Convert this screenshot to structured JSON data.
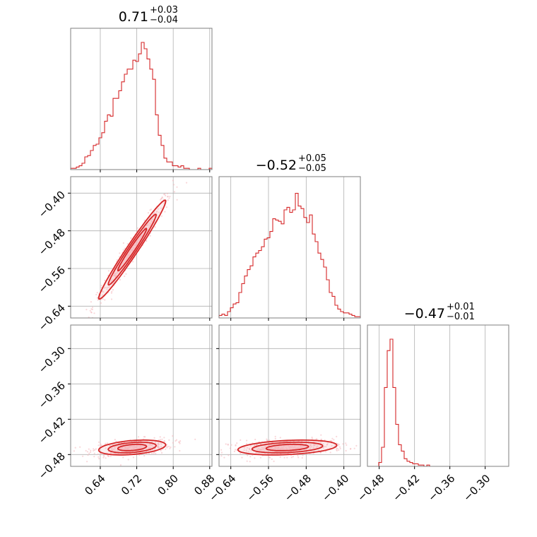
{
  "chart_data": {
    "type": "corner",
    "color": "#d62728",
    "fill_color": "#f4b6bb",
    "grid": true,
    "parameters": [
      {
        "title_value": "0.71",
        "title_plus": "+0.03",
        "title_minus": "−0.04",
        "range": [
          0.575,
          0.885
        ],
        "ticks": [
          0.64,
          0.72,
          0.8,
          0.88
        ],
        "tick_labels": [
          "0.64",
          "0.72",
          "0.80",
          "0.88"
        ],
        "median": 0.71,
        "sigma": 0.035
      },
      {
        "title_value": "−0.52",
        "title_plus": "+0.05",
        "title_minus": "−0.05",
        "range": [
          -0.665,
          -0.365
        ],
        "ticks": [
          -0.64,
          -0.56,
          -0.48,
          -0.4
        ],
        "tick_labels": [
          "−0.64",
          "−0.56",
          "−0.48",
          "−0.40"
        ],
        "median": -0.52,
        "sigma": 0.05
      },
      {
        "title_value": "−0.47",
        "title_plus": "+0.01",
        "title_minus": "−0.01",
        "range": [
          -0.5,
          -0.26
        ],
        "ticks": [
          -0.48,
          -0.42,
          -0.36,
          -0.3
        ],
        "tick_labels": [
          "−0.48",
          "−0.42",
          "−0.36",
          "−0.30"
        ],
        "median": -0.468,
        "sigma": 0.006
      }
    ],
    "histograms": [
      [
        0.01,
        0.01,
        0.02,
        0.03,
        0.05,
        0.1,
        0.11,
        0.15,
        0.19,
        0.2,
        0.25,
        0.29,
        0.38,
        0.43,
        0.42,
        0.56,
        0.56,
        0.62,
        0.69,
        0.75,
        0.79,
        0.79,
        0.86,
        0.85,
        0.91,
        1.0,
        0.95,
        0.87,
        0.79,
        0.71,
        0.43,
        0.27,
        0.19,
        0.09,
        0.06,
        0.06,
        0.03,
        0.03,
        0.02,
        0.03,
        0.01,
        0.01,
        0.0,
        0.0,
        0.0,
        0.01,
        0.0,
        0.0,
        0.0,
        0.01
      ],
      [
        0.02,
        0.03,
        0.02,
        0.05,
        0.08,
        0.11,
        0.12,
        0.2,
        0.27,
        0.33,
        0.38,
        0.41,
        0.48,
        0.51,
        0.53,
        0.56,
        0.62,
        0.63,
        0.68,
        0.78,
        0.77,
        0.76,
        0.74,
        0.85,
        0.87,
        0.83,
        0.85,
        0.98,
        0.88,
        0.86,
        0.79,
        0.75,
        0.81,
        0.66,
        0.6,
        0.51,
        0.46,
        0.4,
        0.3,
        0.2,
        0.17,
        0.1,
        0.07,
        0.05,
        0.04,
        0.04,
        0.03,
        0.02,
        0.01,
        0.01
      ],
      [
        0.0,
        0.0,
        0.0,
        0.0,
        0.03,
        0.15,
        0.62,
        0.91,
        1.0,
        0.62,
        0.33,
        0.17,
        0.12,
        0.06,
        0.04,
        0.03,
        0.02,
        0.02,
        0.01,
        0.01,
        0.0,
        0.01,
        0.0,
        0.0,
        0.0,
        0.0,
        0.0,
        0.0,
        0.0,
        0.0,
        0.0,
        0.0,
        0.0,
        0.0,
        0.0,
        0.0,
        0.0,
        0.0,
        0.0,
        0.0,
        0.0,
        0.0,
        0.0,
        0.0,
        0.0,
        0.0,
        0.0,
        0.0,
        0.0,
        0.0
      ]
    ],
    "correlations": {
      "1_0": 0.98,
      "2_0": 0.35,
      "2_1": 0.3
    }
  }
}
